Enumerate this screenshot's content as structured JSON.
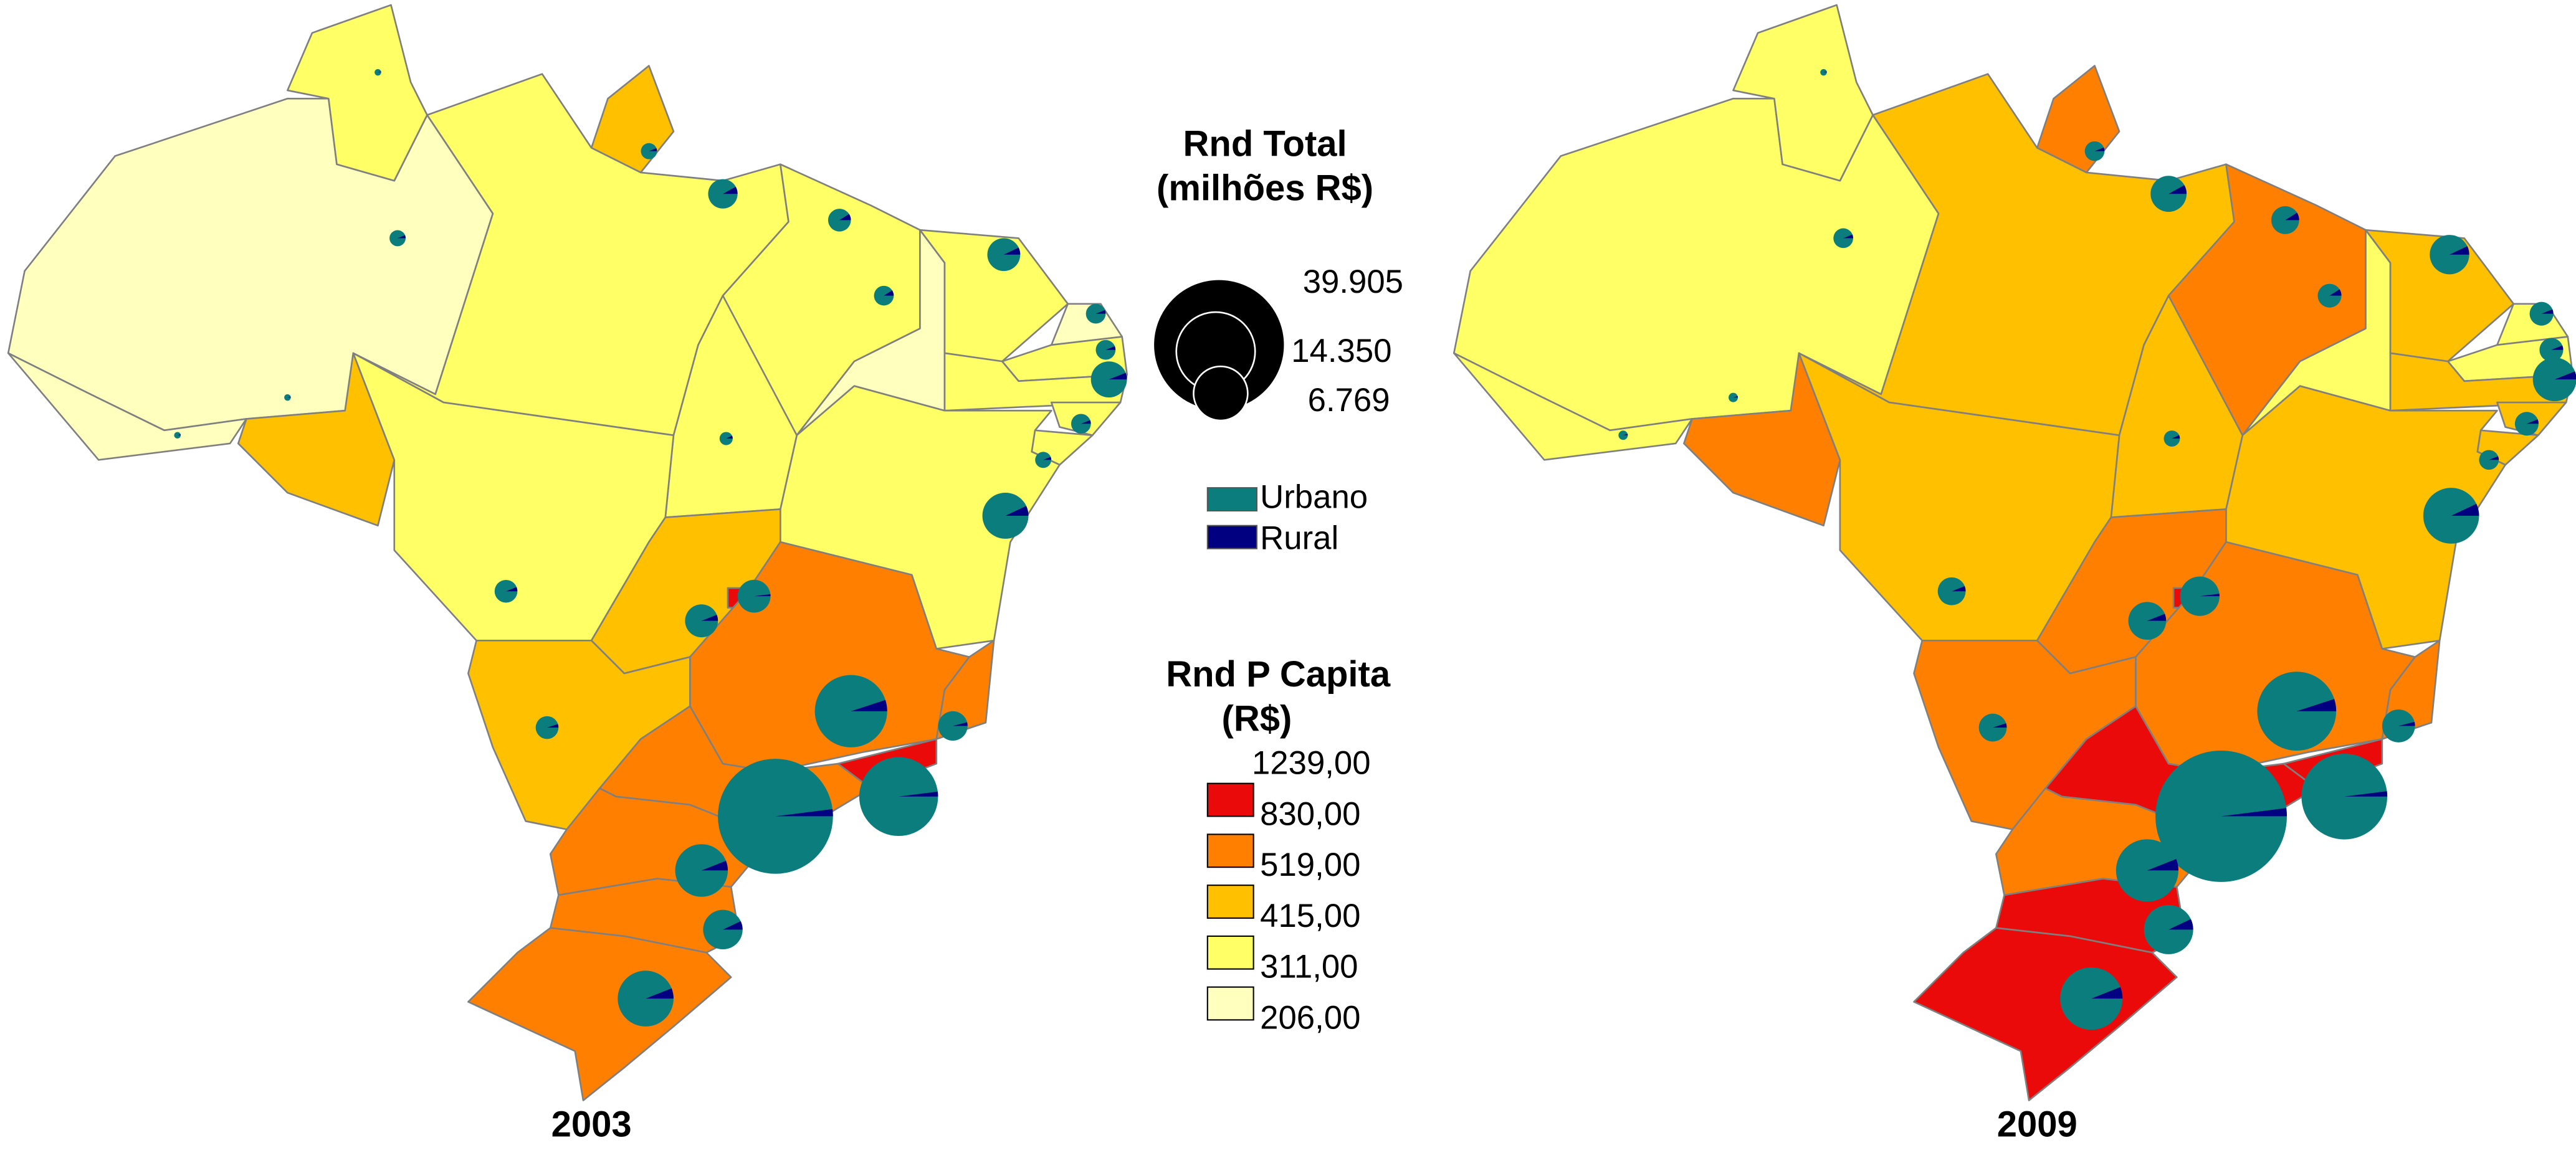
{
  "maps": [
    {
      "title": "2003",
      "classes": [
        4,
        3,
        4,
        2,
        2,
        3,
        3,
        4,
        3,
        4,
        3,
        3,
        3,
        3,
        3,
        3,
        3,
        2,
        0,
        1,
        1,
        0,
        2,
        1,
        1,
        1,
        1
      ],
      "pies": {
        "totals": [
          0.6,
          0.1,
          0.1,
          0.6,
          0.1,
          2.0,
          1.2,
          0.9,
          2.5,
          0.9,
          0.9,
          3.0,
          0.9,
          0.6,
          4.9,
          0.4,
          1.2,
          2.5,
          2.5,
          1.2,
          12.1,
          2.0,
          14.35,
          30.6,
          6.4,
          3.6,
          7.2
        ],
        "rural_pct": [
          6,
          5,
          5,
          6,
          5,
          8,
          9,
          9,
          7,
          6,
          6,
          6,
          6,
          6,
          7,
          7,
          6,
          6,
          2,
          5,
          5,
          4,
          2,
          2,
          6,
          7,
          6
        ]
      }
    },
    {
      "title": "2009",
      "classes": [
        3,
        3,
        3,
        1,
        1,
        2,
        1,
        3,
        2,
        3,
        3,
        2,
        2,
        2,
        2,
        2,
        2,
        1,
        0,
        1,
        1,
        0,
        1,
        0,
        1,
        0,
        0
      ],
      "pies": {
        "totals": [
          0.9,
          0.1,
          0.2,
          0.9,
          0.2,
          3.0,
          1.8,
          1.3,
          3.6,
          1.3,
          1.3,
          4.4,
          1.3,
          0.9,
          7.2,
          0.6,
          1.8,
          3.3,
          3.6,
          1.8,
          14.4,
          2.5,
          17.0,
          39.905,
          9.0,
          5.6,
          9.0
        ],
        "rural_pct": [
          6,
          5,
          5,
          6,
          5,
          8,
          9,
          9,
          7,
          6,
          6,
          6,
          6,
          6,
          7,
          7,
          6,
          6,
          2,
          5,
          5,
          4,
          2,
          2,
          6,
          7,
          6
        ]
      }
    }
  ],
  "legend": {
    "size_title_lines": [
      "Rnd Total",
      "(milhões R$)"
    ],
    "sizes": [
      {
        "value": 39.905,
        "label": "39.905"
      },
      {
        "value": 14.35,
        "label": "14.350"
      },
      {
        "value": 6.769,
        "label": "6.769"
      }
    ],
    "pie_legend": [
      {
        "name": "Urbano",
        "color": "#0b7d7d"
      },
      {
        "name": "Rural",
        "color": "#000080"
      }
    ],
    "color_title_lines": [
      "Rnd P Capita",
      "(R$)"
    ],
    "breaks": [
      {
        "value": 1239,
        "label": "1239,00"
      },
      {
        "value": 830,
        "label": "830,00"
      },
      {
        "value": 519,
        "label": "519,00"
      },
      {
        "value": 415,
        "label": "415,00"
      },
      {
        "value": 311,
        "label": "311,00"
      },
      {
        "value": 206,
        "label": "206,00"
      }
    ],
    "class_colors": [
      "#ea0a0a",
      "#ff8000",
      "#ffc000",
      "#ffff66",
      "#ffffbe"
    ]
  }
}
